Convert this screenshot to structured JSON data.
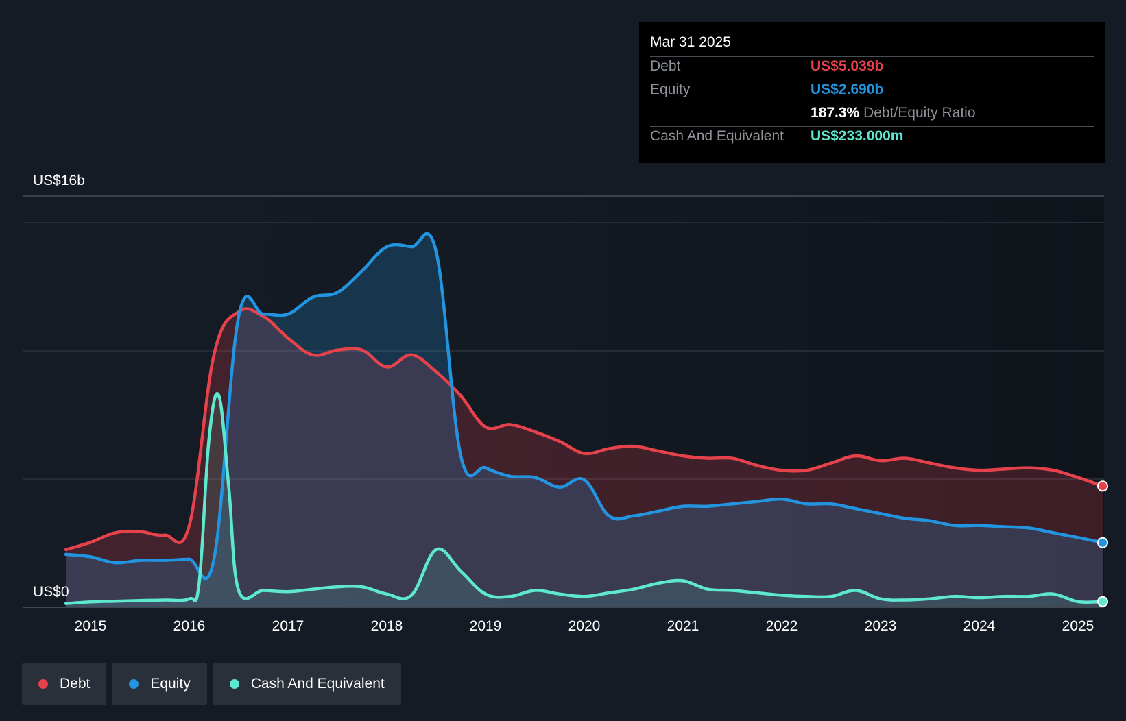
{
  "chart_data": {
    "type": "area",
    "y_top_label": "US$16b",
    "y_bottom_label": "US$0",
    "ylim": [
      0,
      16
    ],
    "y_unit": "US$ billions",
    "xlim": [
      2014.75,
      2025.25
    ],
    "x_ticks": [
      "2015",
      "2016",
      "2017",
      "2018",
      "2019",
      "2020",
      "2021",
      "2022",
      "2023",
      "2024",
      "2025"
    ],
    "grid": true,
    "legend_position": "bottom-left",
    "series": [
      {
        "name": "Debt",
        "color": "#e5424c",
        "points": [
          [
            2014.75,
            2.4
          ],
          [
            2015,
            2.7
          ],
          [
            2015.25,
            3.1
          ],
          [
            2015.5,
            3.15
          ],
          [
            2015.75,
            3.0
          ],
          [
            2016,
            3.4
          ],
          [
            2016.25,
            10.5
          ],
          [
            2016.5,
            12.3
          ],
          [
            2016.75,
            12.1
          ],
          [
            2017,
            11.2
          ],
          [
            2017.25,
            10.5
          ],
          [
            2017.5,
            10.7
          ],
          [
            2017.75,
            10.7
          ],
          [
            2018,
            10.0
          ],
          [
            2018.25,
            10.5
          ],
          [
            2018.5,
            9.8
          ],
          [
            2018.75,
            8.8
          ],
          [
            2019,
            7.5
          ],
          [
            2019.25,
            7.6
          ],
          [
            2019.5,
            7.3
          ],
          [
            2019.75,
            6.9
          ],
          [
            2020,
            6.4
          ],
          [
            2020.25,
            6.6
          ],
          [
            2020.5,
            6.7
          ],
          [
            2020.75,
            6.5
          ],
          [
            2021,
            6.3
          ],
          [
            2021.25,
            6.2
          ],
          [
            2021.5,
            6.2
          ],
          [
            2021.75,
            5.9
          ],
          [
            2022,
            5.7
          ],
          [
            2022.25,
            5.7
          ],
          [
            2022.5,
            6.0
          ],
          [
            2022.75,
            6.3
          ],
          [
            2023,
            6.1
          ],
          [
            2023.25,
            6.2
          ],
          [
            2023.5,
            6.0
          ],
          [
            2023.75,
            5.8
          ],
          [
            2024,
            5.7
          ],
          [
            2024.25,
            5.75
          ],
          [
            2024.5,
            5.8
          ],
          [
            2024.75,
            5.7
          ],
          [
            2025,
            5.4
          ],
          [
            2025.25,
            5.039
          ]
        ]
      },
      {
        "name": "Equity",
        "color": "#2394df",
        "points": [
          [
            2014.75,
            2.2
          ],
          [
            2015,
            2.1
          ],
          [
            2015.25,
            1.85
          ],
          [
            2015.5,
            1.95
          ],
          [
            2015.75,
            1.95
          ],
          [
            2016,
            2.0
          ],
          [
            2016.25,
            2.0
          ],
          [
            2016.5,
            12.1
          ],
          [
            2016.75,
            12.2
          ],
          [
            2017,
            12.2
          ],
          [
            2017.25,
            12.9
          ],
          [
            2017.5,
            13.1
          ],
          [
            2017.75,
            14.0
          ],
          [
            2018,
            15.0
          ],
          [
            2018.25,
            15.0
          ],
          [
            2018.5,
            14.8
          ],
          [
            2018.75,
            6.3
          ],
          [
            2019,
            5.8
          ],
          [
            2019.25,
            5.45
          ],
          [
            2019.5,
            5.4
          ],
          [
            2019.75,
            5.0
          ],
          [
            2020,
            5.3
          ],
          [
            2020.25,
            3.8
          ],
          [
            2020.5,
            3.8
          ],
          [
            2020.75,
            4.0
          ],
          [
            2021,
            4.2
          ],
          [
            2021.25,
            4.2
          ],
          [
            2021.5,
            4.3
          ],
          [
            2021.75,
            4.4
          ],
          [
            2022,
            4.5
          ],
          [
            2022.25,
            4.3
          ],
          [
            2022.5,
            4.3
          ],
          [
            2022.75,
            4.1
          ],
          [
            2023,
            3.9
          ],
          [
            2023.25,
            3.7
          ],
          [
            2023.5,
            3.6
          ],
          [
            2023.75,
            3.4
          ],
          [
            2024,
            3.4
          ],
          [
            2024.25,
            3.35
          ],
          [
            2024.5,
            3.3
          ],
          [
            2024.75,
            3.1
          ],
          [
            2025,
            2.9
          ],
          [
            2025.25,
            2.69
          ]
        ]
      },
      {
        "name": "Cash And Equivalent",
        "color": "#5ee8d0",
        "points": [
          [
            2014.75,
            0.15
          ],
          [
            2015,
            0.22
          ],
          [
            2015.25,
            0.25
          ],
          [
            2015.5,
            0.28
          ],
          [
            2015.75,
            0.3
          ],
          [
            2016,
            0.35
          ],
          [
            2016.1,
            1.0
          ],
          [
            2016.2,
            7.0
          ],
          [
            2016.3,
            8.8
          ],
          [
            2016.4,
            5.0
          ],
          [
            2016.5,
            0.7
          ],
          [
            2016.75,
            0.7
          ],
          [
            2017,
            0.65
          ],
          [
            2017.25,
            0.75
          ],
          [
            2017.5,
            0.85
          ],
          [
            2017.75,
            0.85
          ],
          [
            2018,
            0.55
          ],
          [
            2018.25,
            0.5
          ],
          [
            2018.5,
            2.4
          ],
          [
            2018.75,
            1.5
          ],
          [
            2019,
            0.55
          ],
          [
            2019.25,
            0.45
          ],
          [
            2019.5,
            0.7
          ],
          [
            2019.75,
            0.55
          ],
          [
            2020,
            0.45
          ],
          [
            2020.25,
            0.6
          ],
          [
            2020.5,
            0.75
          ],
          [
            2020.75,
            1.0
          ],
          [
            2021,
            1.1
          ],
          [
            2021.25,
            0.75
          ],
          [
            2021.5,
            0.7
          ],
          [
            2021.75,
            0.6
          ],
          [
            2022,
            0.5
          ],
          [
            2022.25,
            0.45
          ],
          [
            2022.5,
            0.45
          ],
          [
            2022.75,
            0.7
          ],
          [
            2023,
            0.35
          ],
          [
            2023.25,
            0.3
          ],
          [
            2023.5,
            0.35
          ],
          [
            2023.75,
            0.45
          ],
          [
            2024,
            0.4
          ],
          [
            2024.25,
            0.45
          ],
          [
            2024.5,
            0.45
          ],
          [
            2024.75,
            0.55
          ],
          [
            2025,
            0.23
          ],
          [
            2025.25,
            0.233
          ]
        ]
      }
    ]
  },
  "tooltip": {
    "date": "Mar 31 2025",
    "debt_label": "Debt",
    "debt_value": "US$5.039b",
    "equity_label": "Equity",
    "equity_value": "US$2.690b",
    "ratio_value": "187.3%",
    "ratio_label": "Debt/Equity Ratio",
    "cash_label": "Cash And Equivalent",
    "cash_value": "US$233.000m"
  },
  "legend": {
    "debt": "Debt",
    "equity": "Equity",
    "cash": "Cash And Equivalent"
  },
  "colors": {
    "debt": "#e5424c",
    "equity": "#2394df",
    "cash": "#5ee8d0",
    "background": "#151b24"
  }
}
